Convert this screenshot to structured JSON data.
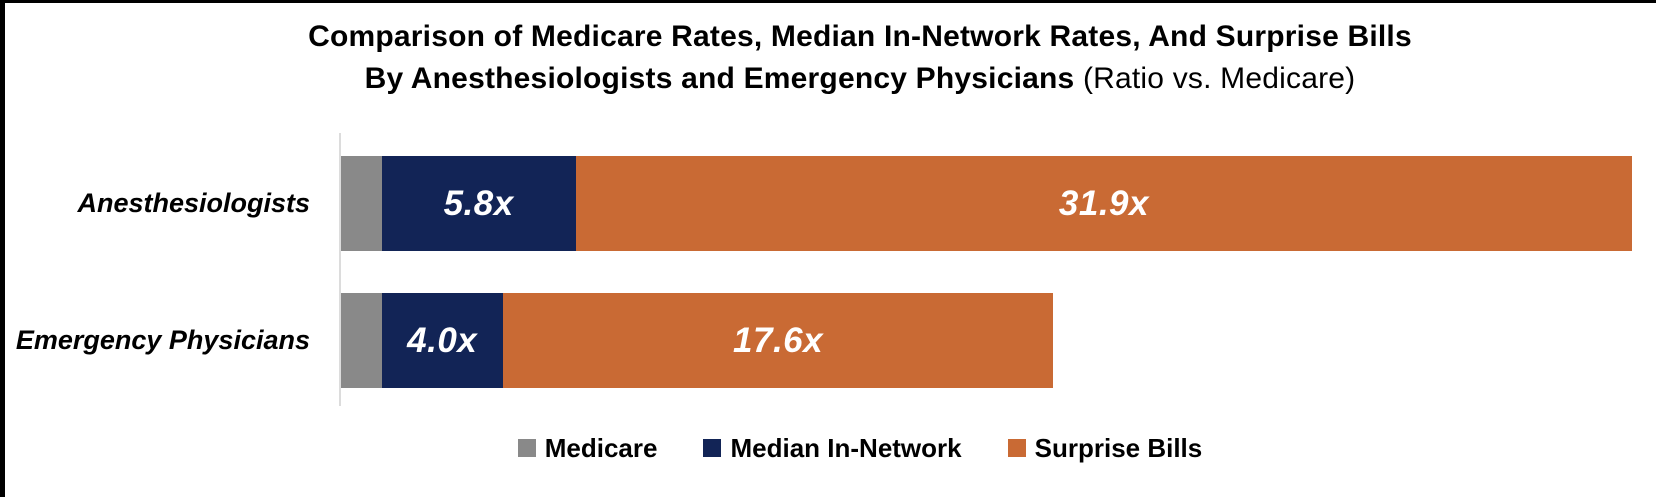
{
  "title": {
    "line1": "Comparison of Medicare Rates, Median In-Network Rates, And Surprise Bills",
    "line2_bold": "By Anesthesiologists and Emergency Physicians",
    "line2_regular": " (Ratio vs. Medicare)"
  },
  "colors": {
    "medicare": "#898989",
    "median_in_network": "#122456",
    "surprise_bills": "#c96a34",
    "axis_line": "#dcdcdc",
    "frame_border": "#000000",
    "value_label_text": "#ffffff"
  },
  "legend": {
    "items": [
      {
        "label": "Medicare",
        "color_key": "medicare"
      },
      {
        "label": "Median In-Network",
        "color_key": "median_in_network"
      },
      {
        "label": "Surprise Bills",
        "color_key": "surprise_bills"
      }
    ],
    "position": "bottom"
  },
  "chart_data": {
    "type": "bar",
    "orientation": "horizontal-stacked",
    "title": "Comparison of Medicare Rates, Median In-Network Rates, And Surprise Bills By Anesthesiologists and Emergency Physicians (Ratio vs. Medicare)",
    "unit": "ratio vs. Medicare (x)",
    "categories": [
      "Anesthesiologists",
      "Emergency Physicians"
    ],
    "series": [
      {
        "name": "Medicare",
        "color_key": "medicare",
        "cumulative_values": [
          1.0,
          1.0
        ],
        "labels": [
          "",
          ""
        ]
      },
      {
        "name": "Median In-Network",
        "color_key": "median_in_network",
        "cumulative_values": [
          5.8,
          4.0
        ],
        "labels": [
          "5.8x",
          "4.0x"
        ]
      },
      {
        "name": "Surprise Bills",
        "color_key": "surprise_bills",
        "cumulative_values": [
          31.9,
          17.6
        ],
        "labels": [
          "31.9x",
          "17.6x"
        ]
      }
    ],
    "stacking": "segments span from previous series cumulative value to own cumulative value",
    "xlim": [
      0,
      31.9
    ],
    "grid": false,
    "legend_position": "bottom"
  }
}
